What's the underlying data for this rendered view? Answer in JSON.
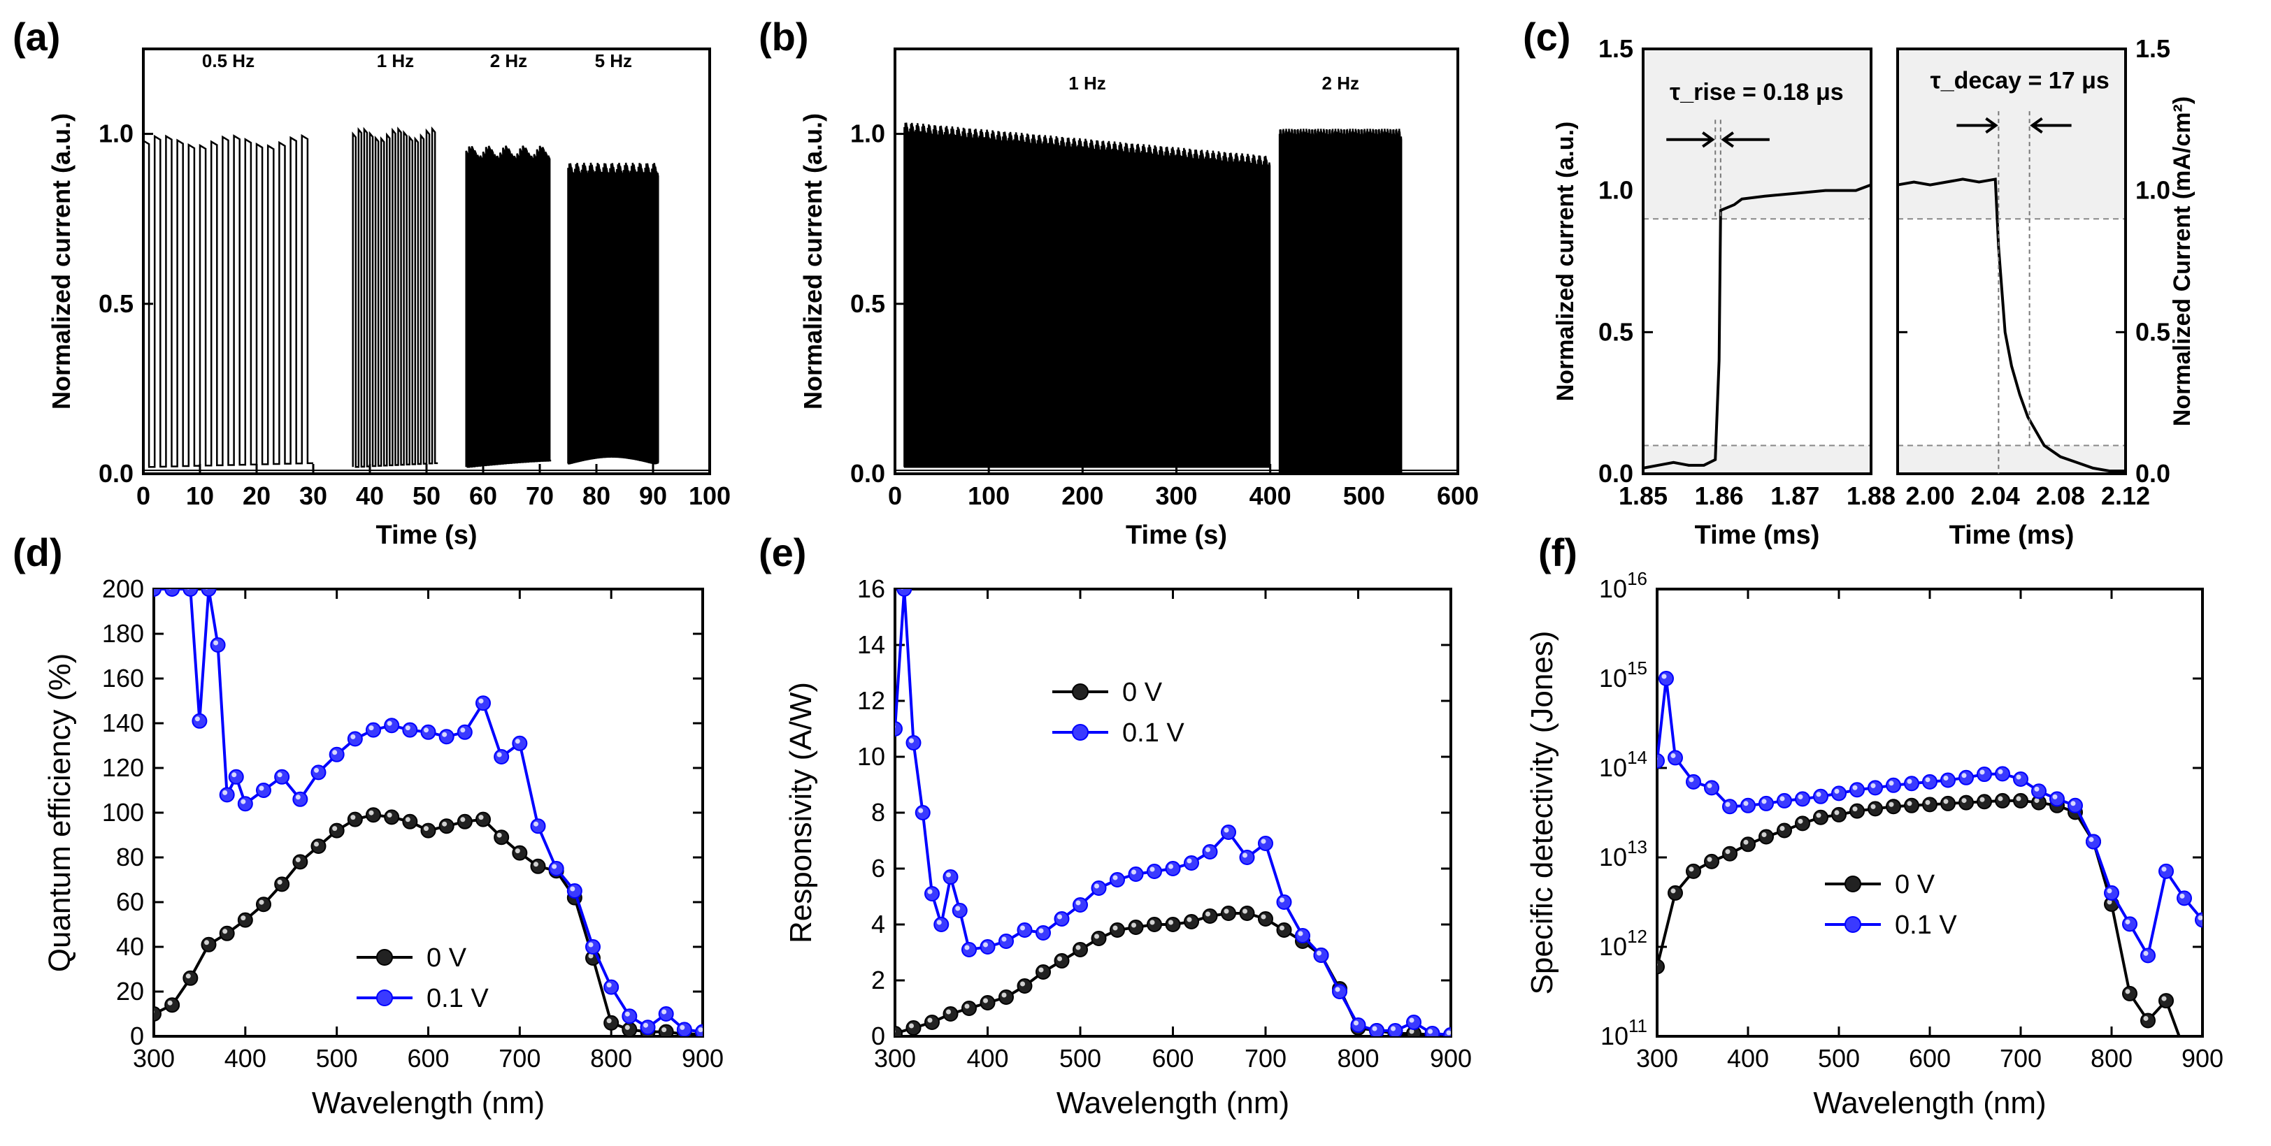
{
  "figure": {
    "panels": [
      "(a)",
      "(b)",
      "(c)",
      "(d)",
      "(e)",
      "(f)"
    ]
  },
  "chart_data": [
    {
      "id": "a",
      "type": "line",
      "panel_label": "(a)",
      "title": "",
      "xlabel": "Time (s)",
      "ylabel": "Normalized current (a.u.)",
      "xlim": [
        0,
        100
      ],
      "ylim": [
        0,
        1.25
      ],
      "xticks": [
        "0",
        "10",
        "20",
        "30",
        "40",
        "50",
        "60",
        "70",
        "80",
        "90",
        "100"
      ],
      "yticks": [
        "0.0",
        "0.5",
        "1.0"
      ],
      "annotations": [
        "0.5 Hz",
        "1 Hz",
        "2 Hz",
        "5 Hz"
      ],
      "segments": [
        {
          "name": "0.5 Hz",
          "t_start": 0,
          "t_end": 30,
          "frequency_hz": 0.5,
          "on_level": 0.98,
          "off_level": 0.02
        },
        {
          "name": "1 Hz",
          "t_start": 37,
          "t_end": 52,
          "frequency_hz": 1,
          "on_level": 1.0,
          "off_level": 0.02
        },
        {
          "name": "2 Hz",
          "t_start": 57,
          "t_end": 72,
          "frequency_hz": 2,
          "on_level": 0.95,
          "off_level": 0.02
        },
        {
          "name": "5 Hz",
          "t_start": 75,
          "t_end": 91,
          "frequency_hz": 5,
          "on_level": 0.9,
          "off_level": 0.03
        }
      ]
    },
    {
      "id": "b",
      "type": "line",
      "panel_label": "(b)",
      "title": "",
      "xlabel": "Time (s)",
      "ylabel": "Normalized current (a.u.)",
      "xlim": [
        0,
        600
      ],
      "ylim": [
        0,
        1.25
      ],
      "xticks": [
        "0",
        "100",
        "200",
        "300",
        "400",
        "500",
        "600"
      ],
      "yticks": [
        "0.0",
        "0.5",
        "1.0"
      ],
      "annotations": [
        "1 Hz",
        "2 Hz"
      ],
      "segments": [
        {
          "name": "1 Hz",
          "t_start": 10,
          "t_end": 400,
          "frequency_hz": 1,
          "on_level_start": 1.02,
          "on_level_end": 0.92,
          "off_level": 0.02
        },
        {
          "name": "2 Hz",
          "t_start": 410,
          "t_end": 540,
          "frequency_hz": 2,
          "on_level": 1.0,
          "off_level": 0.0
        }
      ]
    },
    {
      "id": "c1",
      "type": "line",
      "panel_label": "(c)",
      "title": "",
      "xlabel": "Time (ms)",
      "ylabel": "Normalized current (a.u.)",
      "xlim": [
        1.85,
        1.88
      ],
      "ylim": [
        0,
        1.5
      ],
      "xticks": [
        "1.85",
        "1.86",
        "1.87",
        "1.88"
      ],
      "yticks": [
        "0.0",
        "0.5",
        "1.0",
        "1.5"
      ],
      "annotations": [
        "τ_rise = 0.18 μs"
      ],
      "series": [
        {
          "name": "rise",
          "x": [
            1.85,
            1.852,
            1.854,
            1.856,
            1.858,
            1.8595,
            1.86,
            1.8602,
            1.862,
            1.863,
            1.866,
            1.87,
            1.874,
            1.878,
            1.88
          ],
          "y": [
            0.02,
            0.03,
            0.04,
            0.03,
            0.03,
            0.05,
            0.4,
            0.93,
            0.95,
            0.97,
            0.98,
            0.99,
            1.0,
            1.0,
            1.02
          ]
        }
      ]
    },
    {
      "id": "c2",
      "type": "line",
      "title": "",
      "xlabel": "Time (ms)",
      "ylabel": "Normalized Current (mA/cm²)",
      "xlim": [
        1.98,
        2.12
      ],
      "ylim": [
        0,
        1.5
      ],
      "xticks": [
        "2.00",
        "2.04",
        "2.08",
        "2.12"
      ],
      "yticks": [
        "0.0",
        "0.5",
        "1.0",
        "1.5"
      ],
      "annotations": [
        "τ_decay = 17 μs"
      ],
      "series": [
        {
          "name": "decay",
          "x": [
            1.98,
            1.99,
            2.0,
            2.01,
            2.02,
            2.03,
            2.04,
            2.042,
            2.046,
            2.05,
            2.055,
            2.06,
            2.065,
            2.07,
            2.08,
            2.09,
            2.1,
            2.11,
            2.12
          ],
          "y": [
            1.02,
            1.03,
            1.02,
            1.03,
            1.04,
            1.03,
            1.04,
            0.8,
            0.5,
            0.38,
            0.28,
            0.2,
            0.15,
            0.1,
            0.06,
            0.04,
            0.02,
            0.01,
            0.01
          ]
        }
      ]
    },
    {
      "id": "d",
      "type": "line",
      "panel_label": "(d)",
      "title": "",
      "xlabel": "Wavelength (nm)",
      "ylabel": "Quantum efficiency (%)",
      "xlim": [
        300,
        900
      ],
      "ylim": [
        0,
        200
      ],
      "xticks": [
        "300",
        "400",
        "500",
        "600",
        "700",
        "800",
        "900"
      ],
      "yticks": [
        "0",
        "20",
        "40",
        "60",
        "80",
        "100",
        "120",
        "140",
        "160",
        "180",
        "200"
      ],
      "legend": [
        "0 V",
        "0.1 V"
      ],
      "legend_position": "lower-center",
      "series": [
        {
          "name": "0 V",
          "color": "#000000",
          "x": [
            300,
            320,
            340,
            360,
            380,
            400,
            420,
            440,
            460,
            480,
            500,
            520,
            540,
            560,
            580,
            600,
            620,
            640,
            660,
            680,
            700,
            720,
            740,
            760,
            780,
            800,
            820,
            840,
            860,
            880,
            900
          ],
          "y": [
            10,
            14,
            26,
            41,
            46,
            52,
            59,
            68,
            78,
            85,
            92,
            97,
            99,
            98,
            96,
            92,
            94,
            96,
            97,
            89,
            82,
            76,
            74,
            62,
            35,
            6,
            3,
            2,
            2,
            1,
            1
          ]
        },
        {
          "name": "0.1 V",
          "color": "#0000ff",
          "x": [
            300,
            320,
            340,
            350,
            360,
            370,
            380,
            390,
            400,
            420,
            440,
            460,
            480,
            500,
            520,
            540,
            560,
            580,
            600,
            620,
            640,
            660,
            680,
            700,
            720,
            740,
            760,
            780,
            800,
            820,
            840,
            860,
            880,
            900
          ],
          "y": [
            200,
            200,
            200,
            141,
            200,
            175,
            108,
            116,
            104,
            110,
            116,
            106,
            118,
            126,
            133,
            137,
            139,
            137,
            136,
            134,
            136,
            149,
            125,
            131,
            94,
            75,
            65,
            40,
            22,
            9,
            4,
            10,
            3,
            2
          ]
        }
      ]
    },
    {
      "id": "e",
      "type": "line",
      "panel_label": "(e)",
      "title": "",
      "xlabel": "Wavelength (nm)",
      "ylabel": "Responsivity (A/W)",
      "xlim": [
        300,
        900
      ],
      "ylim": [
        0,
        16
      ],
      "xticks": [
        "300",
        "400",
        "500",
        "600",
        "700",
        "800",
        "900"
      ],
      "yticks": [
        "0",
        "2",
        "4",
        "6",
        "8",
        "10",
        "12",
        "14",
        "16"
      ],
      "legend": [
        "0 V",
        "0.1 V"
      ],
      "legend_position": "upper-center",
      "series": [
        {
          "name": "0 V",
          "color": "#000000",
          "x": [
            300,
            320,
            340,
            360,
            380,
            400,
            420,
            440,
            460,
            480,
            500,
            520,
            540,
            560,
            580,
            600,
            620,
            640,
            660,
            680,
            700,
            720,
            740,
            760,
            780,
            800,
            820,
            840,
            860,
            880,
            900
          ],
          "y": [
            0.1,
            0.3,
            0.5,
            0.8,
            1.0,
            1.2,
            1.4,
            1.8,
            2.3,
            2.7,
            3.1,
            3.5,
            3.8,
            3.9,
            4.0,
            4.0,
            4.1,
            4.3,
            4.4,
            4.4,
            4.2,
            3.8,
            3.4,
            2.9,
            1.7,
            0.3,
            0.2,
            0.1,
            0.1,
            0.05,
            0.05
          ]
        },
        {
          "name": "0.1 V",
          "color": "#0000ff",
          "x": [
            300,
            310,
            320,
            330,
            340,
            350,
            360,
            370,
            380,
            400,
            420,
            440,
            460,
            480,
            500,
            520,
            540,
            560,
            580,
            600,
            620,
            640,
            660,
            680,
            700,
            720,
            740,
            760,
            780,
            800,
            820,
            840,
            860,
            880,
            900
          ],
          "y": [
            11,
            16,
            10.5,
            8,
            5.1,
            4,
            5.7,
            4.5,
            3.1,
            3.2,
            3.4,
            3.8,
            3.7,
            4.2,
            4.7,
            5.3,
            5.6,
            5.8,
            5.9,
            6.0,
            6.2,
            6.6,
            7.3,
            6.4,
            6.9,
            4.8,
            3.6,
            2.9,
            1.6,
            0.4,
            0.2,
            0.2,
            0.5,
            0.1,
            0.05
          ]
        }
      ]
    },
    {
      "id": "f",
      "type": "line",
      "panel_label": "(f)",
      "title": "",
      "xlabel": "Wavelength (nm)",
      "ylabel": "Specific detectivity (Jones)",
      "xlim": [
        300,
        900
      ],
      "ylim": [
        100000000000.0,
        1e+16
      ],
      "yscale": "log",
      "xticks": [
        "300",
        "400",
        "500",
        "600",
        "700",
        "800",
        "900"
      ],
      "yticks": [
        "10^11",
        "10^12",
        "10^13",
        "10^14",
        "10^15",
        "10^16"
      ],
      "legend": [
        "0 V",
        "0.1 V"
      ],
      "legend_position": "center",
      "series": [
        {
          "name": "0 V",
          "color": "#000000",
          "x": [
            300,
            320,
            340,
            360,
            380,
            400,
            420,
            440,
            460,
            480,
            500,
            520,
            540,
            560,
            580,
            600,
            620,
            640,
            660,
            680,
            700,
            720,
            740,
            760,
            780,
            800,
            820,
            840,
            860,
            880
          ],
          "y": [
            600000000000.0,
            4000000000000.0,
            7000000000000.0,
            9000000000000.0,
            11000000000000.0,
            14000000000000.0,
            17000000000000.0,
            20000000000000.0,
            24000000000000.0,
            28000000000000.0,
            30000000000000.0,
            33000000000000.0,
            35000000000000.0,
            37000000000000.0,
            38000000000000.0,
            39000000000000.0,
            40000000000000.0,
            41000000000000.0,
            42000000000000.0,
            43000000000000.0,
            43000000000000.0,
            41000000000000.0,
            38000000000000.0,
            32000000000000.0,
            15000000000000.0,
            3000000000000.0,
            300000000000.0,
            150000000000.0,
            250000000000.0,
            70000000000.0
          ]
        },
        {
          "name": "0.1 V",
          "color": "#0000ff",
          "x": [
            300,
            310,
            320,
            340,
            360,
            380,
            400,
            420,
            440,
            460,
            480,
            500,
            520,
            540,
            560,
            580,
            600,
            620,
            640,
            660,
            680,
            700,
            720,
            740,
            760,
            780,
            800,
            820,
            840,
            860,
            880,
            900
          ],
          "y": [
            120000000000000.0,
            1000000000000000.0,
            130000000000000.0,
            70000000000000.0,
            60000000000000.0,
            37000000000000.0,
            38000000000000.0,
            40000000000000.0,
            43000000000000.0,
            45000000000000.0,
            48000000000000.0,
            52000000000000.0,
            57000000000000.0,
            60000000000000.0,
            64000000000000.0,
            67000000000000.0,
            70000000000000.0,
            73000000000000.0,
            78000000000000.0,
            85000000000000.0,
            86000000000000.0,
            75000000000000.0,
            55000000000000.0,
            45000000000000.0,
            38000000000000.0,
            15000000000000.0,
            4000000000000.0,
            1800000000000.0,
            800000000000.0,
            7000000000000.0,
            3500000000000.0,
            2000000000000.0
          ]
        }
      ]
    }
  ]
}
